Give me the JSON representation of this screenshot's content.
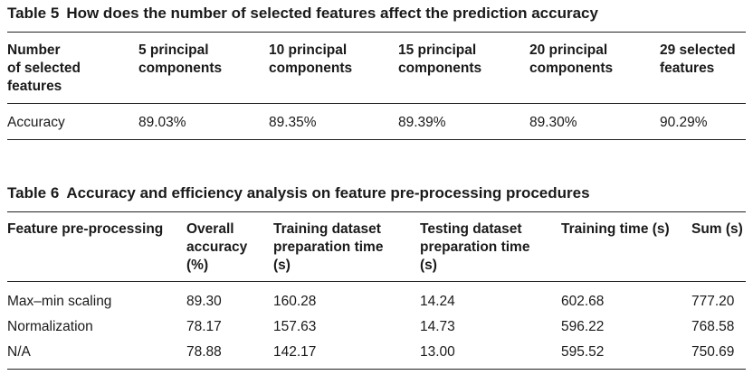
{
  "table5": {
    "number": "Table 5",
    "title": "How does the number of selected features affect the prediction accuracy",
    "headers": [
      "Number\nof selected\nfeatures",
      "5 principal\ncomponents",
      "10 principal\ncomponents",
      "15 principal\ncomponents",
      "20 principal\ncomponents",
      "29 selected\nfeatures"
    ],
    "rows": [
      [
        "Accuracy",
        "89.03%",
        "89.35%",
        "89.39%",
        "89.30%",
        "90.29%"
      ]
    ]
  },
  "table6": {
    "number": "Table 6",
    "title": "Accuracy and efficiency analysis on feature pre-processing procedures",
    "headers": [
      "Feature pre-processing",
      "Overall\naccuracy\n(%)",
      "Training dataset\npreparation time\n(s)",
      "Testing dataset\npreparation time\n(s)",
      "Training time (s)",
      "Sum (s)"
    ],
    "rows": [
      [
        "Max–min scaling",
        "89.30",
        "160.28",
        "14.24",
        "602.68",
        "777.20"
      ],
      [
        "Normalization",
        "78.17",
        "157.63",
        "14.73",
        "596.22",
        "768.58"
      ],
      [
        "N/A",
        "78.88",
        "142.17",
        "13.00",
        "595.52",
        "750.69"
      ]
    ]
  }
}
